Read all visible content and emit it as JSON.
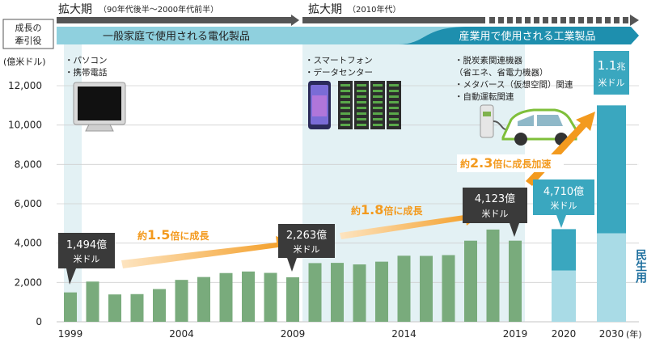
{
  "eras": [
    {
      "label": "拡大期",
      "sub": "（90年代後半～2000年代前半）"
    },
    {
      "label": "拡大期",
      "sub": "（2010年代）"
    }
  ],
  "driver_label": [
    "成長の",
    "牽引役"
  ],
  "band_consumer": "一般家庭で使用される電化製品",
  "band_industrial": "産業用で使用される工業製品",
  "yaxis_unit": "(億米ドル)",
  "year_unit": "(年)",
  "notes": [
    {
      "lines": [
        "・パソコン",
        "・携帯電話"
      ]
    },
    {
      "lines": [
        "・スマートフォン",
        "・データセンター"
      ]
    },
    {
      "lines": [
        "・脱炭素関連機器",
        "（省エネ、省電力機器）",
        "・メタバース（仮想空間）関連",
        "・自動運転関連"
      ]
    }
  ],
  "callouts": [
    {
      "lines": [
        "1,494億",
        "米ドル"
      ]
    },
    {
      "lines": [
        "2,263億",
        "米ドル"
      ]
    },
    {
      "lines": [
        "4,123億",
        "米ドル"
      ]
    },
    {
      "lines": [
        "4,710億",
        "米ドル"
      ]
    },
    {
      "main": "1.1",
      "unit": "兆",
      "line2": "米ドル"
    }
  ],
  "growth": [
    {
      "pre": "約",
      "num": "1.5",
      "post": "倍に成長"
    },
    {
      "pre": "約",
      "num": "1.8",
      "post": "倍に成長"
    },
    {
      "pre": "約",
      "num": "2.3",
      "post": "倍に成長加速"
    }
  ],
  "segments": {
    "industrial": "産業用",
    "consumer": "民生用"
  },
  "colors": {
    "bar": "#79ab7c",
    "teal": "#3aa7bf",
    "teal_light": "#a9dbe6",
    "dark_box": "#3a3a3a",
    "orange": "#f39a1e",
    "band": "#8fd0de",
    "band_dark": "#1e8fae"
  },
  "chart_data": {
    "type": "bar",
    "title": "",
    "ylabel": "(億米ドル)",
    "ylim": [
      0,
      12000
    ],
    "yticks": [
      0,
      2000,
      4000,
      6000,
      8000,
      10000,
      12000
    ],
    "x_tick_labels": [
      "1999",
      "2004",
      "2009",
      "2014",
      "2019",
      "2020",
      "2030"
    ],
    "series": [
      {
        "years": [
          1999,
          2000,
          2001,
          2002,
          2003,
          2004,
          2005,
          2006,
          2007,
          2008,
          2009,
          2010,
          2011,
          2012,
          2013,
          2014,
          2015,
          2016,
          2017,
          2018,
          2019
        ],
        "values": [
          1494,
          2044,
          1390,
          1407,
          1664,
          2130,
          2275,
          2477,
          2556,
          2486,
          2263,
          2983,
          2995,
          2916,
          3056,
          3358,
          3349,
          3389,
          4122,
          4688,
          4123
        ]
      }
    ],
    "forecast": [
      {
        "year": "2020",
        "total": 4710,
        "consumer": 2600
      },
      {
        "year": "2030",
        "total": 11000,
        "consumer": 4500
      }
    ]
  }
}
